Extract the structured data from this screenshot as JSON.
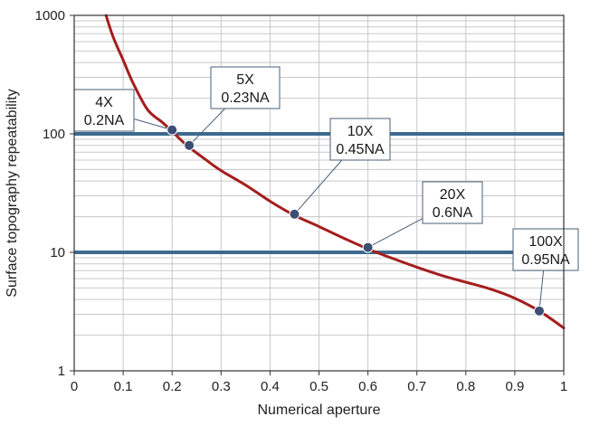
{
  "chart_data": {
    "type": "line",
    "xlabel": "Numerical aperture",
    "ylabel": "Surface topography repeatability",
    "xlim": [
      0,
      1
    ],
    "ylim": [
      1,
      1000
    ],
    "yscale": "log",
    "grid": true,
    "x_ticks": [
      "0",
      "0.1",
      "0.2",
      "0.3",
      "0.4",
      "0.5",
      "0.6",
      "0.7",
      "0.8",
      "0.9",
      "1"
    ],
    "y_ticks": [
      "1",
      "10",
      "100",
      "1000"
    ],
    "threshold_lines": [
      100,
      10
    ],
    "colors": {
      "curve": "#a51d1d",
      "threshold": "#3d6a8e",
      "points": "#3a4f73",
      "grid": "#c8c8c8"
    },
    "series": [
      {
        "values_x": [
          0.065,
          0.08,
          0.1,
          0.12,
          0.15,
          0.18,
          0.2,
          0.23,
          0.27,
          0.3,
          0.35,
          0.4,
          0.45,
          0.5,
          0.55,
          0.6,
          0.65,
          0.7,
          0.75,
          0.8,
          0.85,
          0.9,
          0.95,
          1.0
        ],
        "values_y": [
          1000,
          650,
          420,
          270,
          160,
          125,
          105,
          80,
          60,
          49,
          37,
          27,
          20.5,
          16.5,
          13.2,
          10.7,
          8.9,
          7.5,
          6.4,
          5.6,
          4.9,
          4.1,
          3.2,
          2.3
        ]
      }
    ],
    "points": [
      {
        "x": 0.2,
        "y": 108,
        "line1": "4X",
        "line2": "0.2NA"
      },
      {
        "x": 0.235,
        "y": 80,
        "line1": "5X",
        "line2": "0.23NA"
      },
      {
        "x": 0.45,
        "y": 21,
        "line1": "10X",
        "line2": "0.45NA"
      },
      {
        "x": 0.6,
        "y": 11,
        "line1": "20X",
        "line2": "0.6NA"
      },
      {
        "x": 0.95,
        "y": 3.2,
        "line1": "100X",
        "line2": "0.95NA"
      }
    ]
  }
}
